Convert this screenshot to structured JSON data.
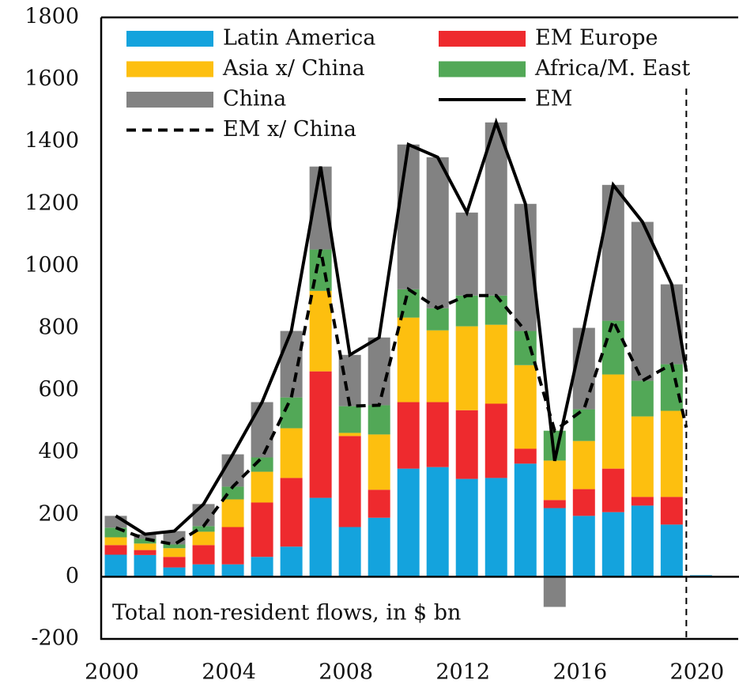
{
  "chart_data": {
    "type": "bar",
    "stacked": true,
    "annotation": "Total non-resident flows, in $ bn",
    "x": [
      2000,
      2001,
      2002,
      2003,
      2004,
      2005,
      2006,
      2007,
      2008,
      2009,
      2010,
      2011,
      2012,
      2013,
      2014,
      2015,
      2016,
      2017,
      2018,
      2019,
      2020
    ],
    "series": [
      {
        "name": "Latin America",
        "color": "#14a3dd",
        "values": [
          71,
          70,
          30,
          40,
          40,
          64,
          97,
          254,
          160,
          190,
          348,
          353,
          315,
          318,
          364,
          221,
          196,
          208,
          229,
          168,
          5
        ]
      },
      {
        "name": "EM Europe",
        "color": "#ee2a2e",
        "values": [
          31,
          16,
          34,
          62,
          120,
          175,
          221,
          407,
          293,
          90,
          214,
          209,
          221,
          239,
          48,
          26,
          86,
          140,
          28,
          89,
          0
        ]
      },
      {
        "name": "Asia x/ China",
        "color": "#fdbf0f",
        "values": [
          25,
          21,
          28,
          43,
          89,
          99,
          160,
          259,
          10,
          178,
          272,
          231,
          270,
          254,
          269,
          127,
          155,
          303,
          259,
          277,
          0
        ]
      },
      {
        "name": "Africa/M. East",
        "color": "#52a857",
        "values": [
          31,
          15,
          12,
          18,
          41,
          46,
          99,
          133,
          86,
          94,
          91,
          71,
          99,
          94,
          110,
          96,
          102,
          173,
          115,
          150,
          0
        ]
      },
      {
        "name": "China",
        "color": "#828282",
        "values": [
          38,
          15,
          43,
          71,
          104,
          178,
          214,
          267,
          165,
          218,
          466,
          486,
          267,
          557,
          409,
          -97,
          262,
          437,
          511,
          257,
          0
        ]
      }
    ],
    "lines": [
      {
        "name": "EM",
        "color": "#000000",
        "style": "solid",
        "x": [
          2000,
          2001,
          2002,
          2003,
          2004,
          2005,
          2006,
          2007,
          2008,
          2009,
          2010,
          2011,
          2012,
          2013,
          2014,
          2015,
          2016,
          2017,
          2018,
          2019,
          2019.5
        ],
        "values": [
          196,
          137,
          147,
          234,
          394,
          562,
          791,
          1320,
          714,
          770,
          1391,
          1350,
          1172,
          1462,
          1200,
          373,
          801,
          1261,
          1142,
          941,
          660
        ]
      },
      {
        "name": "EM x/ China",
        "color": "#000000",
        "style": "dashed",
        "x": [
          2000,
          2001,
          2002,
          2003,
          2004,
          2005,
          2006,
          2007,
          2008,
          2009,
          2010,
          2011,
          2012,
          2013,
          2014,
          2015,
          2016,
          2017,
          2018,
          2019,
          2019.5
        ],
        "values": [
          158,
          122,
          104,
          163,
          290,
          384,
          577,
          1053,
          549,
          552,
          925,
          864,
          905,
          905,
          791,
          470,
          539,
          824,
          631,
          684,
          480
        ]
      }
    ],
    "vline": 2019.5,
    "xlim": [
      1999.5,
      2021.3
    ],
    "xticks": [
      2000,
      2004,
      2008,
      2012,
      2016,
      2020
    ],
    "ylim": [
      -200,
      1800
    ],
    "yticks": [
      -200,
      0,
      200,
      400,
      600,
      800,
      1000,
      1200,
      1400,
      1600,
      1800
    ]
  }
}
